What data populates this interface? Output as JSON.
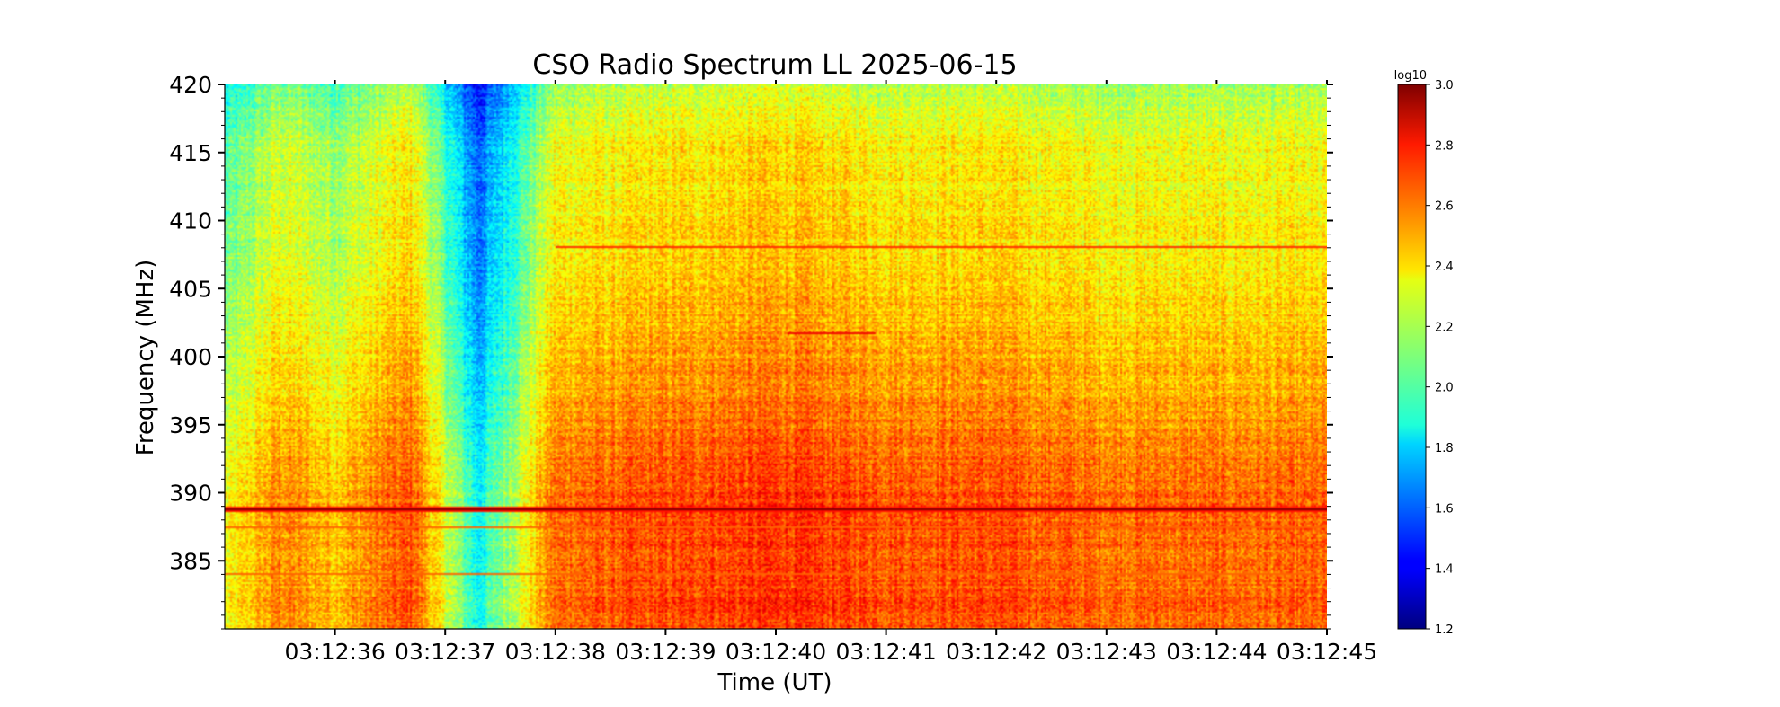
{
  "chart_data": {
    "type": "heatmap",
    "title": "CSO Radio Spectrum LL 2025-06-15",
    "xlabel": "Time (UT)",
    "ylabel": "Frequency (MHz)",
    "x_tick_labels": [
      "03:12:36",
      "03:12:37",
      "03:12:38",
      "03:12:39",
      "03:12:40",
      "03:12:41",
      "03:12:42",
      "03:12:43",
      "03:12:44",
      "03:12:45"
    ],
    "xlim": [
      "03:12:35",
      "03:12:45"
    ],
    "ylim": [
      380,
      420
    ],
    "y_ticks": [
      385,
      390,
      395,
      400,
      405,
      410,
      415,
      420
    ],
    "colorbar": {
      "label": "log10",
      "colormap": "jet",
      "range": [
        1.2,
        3.0
      ],
      "ticks": [
        1.2,
        1.4,
        1.6,
        1.8,
        2.0,
        2.2,
        2.4,
        2.6,
        2.8,
        3.0
      ]
    },
    "intensity_overview_log10": {
      "background_by_time": [
        {
          "time": "03:12:35",
          "value": 2.1
        },
        {
          "time": "03:12:35.5",
          "value": 2.35
        },
        {
          "time": "03:12:36",
          "value": 2.25
        },
        {
          "time": "03:12:36.7",
          "value": 2.45
        },
        {
          "time": "03:12:37.3",
          "value": 1.7
        },
        {
          "time": "03:12:38",
          "value": 2.4
        },
        {
          "time": "03:12:39",
          "value": 2.45
        },
        {
          "time": "03:12:40",
          "value": 2.5
        },
        {
          "time": "03:12:41",
          "value": 2.45
        },
        {
          "time": "03:12:42",
          "value": 2.45
        },
        {
          "time": "03:12:43",
          "value": 2.4
        },
        {
          "time": "03:12:44",
          "value": 2.4
        },
        {
          "time": "03:12:45",
          "value": 2.4
        }
      ],
      "background_by_frequency": [
        {
          "mhz": 420,
          "value": 2.1
        },
        {
          "mhz": 416,
          "value": 2.25
        },
        {
          "mhz": 408,
          "value": 2.3
        },
        {
          "mhz": 400,
          "value": 2.4
        },
        {
          "mhz": 390,
          "value": 2.55
        },
        {
          "mhz": 380,
          "value": 2.55
        }
      ],
      "spectral_lines": [
        {
          "mhz": 388.9,
          "value": 3.0,
          "from": "03:12:35",
          "to": "03:12:45"
        },
        {
          "mhz": 408.1,
          "value": 2.7,
          "from": "03:12:38",
          "to": "03:12:45"
        },
        {
          "mhz": 401.8,
          "value": 2.8,
          "from": "03:12:40.1",
          "to": "03:12:40.9"
        },
        {
          "mhz": 387.5,
          "value": 2.6,
          "from": "03:12:35",
          "to": "03:12:45"
        },
        {
          "mhz": 384.1,
          "value": 2.6,
          "from": "03:12:35",
          "to": "03:12:45"
        }
      ]
    }
  }
}
